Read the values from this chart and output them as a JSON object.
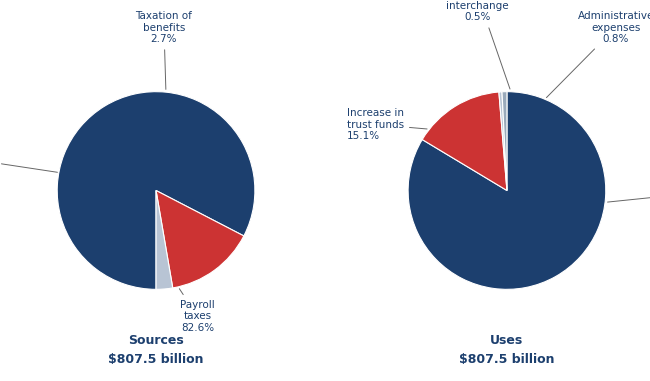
{
  "sources": {
    "values": [
      82.6,
      14.7,
      2.7
    ],
    "title": "Sources",
    "subtitle": "$807.5 billion"
  },
  "uses": {
    "values": [
      83.7,
      15.1,
      0.5,
      0.8
    ],
    "title": "Uses",
    "subtitle": "$807.5 billion"
  },
  "dark_blue": "#1c3f6e",
  "red": "#cc3333",
  "light_gray": "#b8c4d4",
  "medium_gray": "#9aaabb",
  "text_color": "#1c3f6e",
  "background": "#ffffff",
  "sources_startangle": 270,
  "uses_startangle": 90,
  "fontsize": 7.5
}
